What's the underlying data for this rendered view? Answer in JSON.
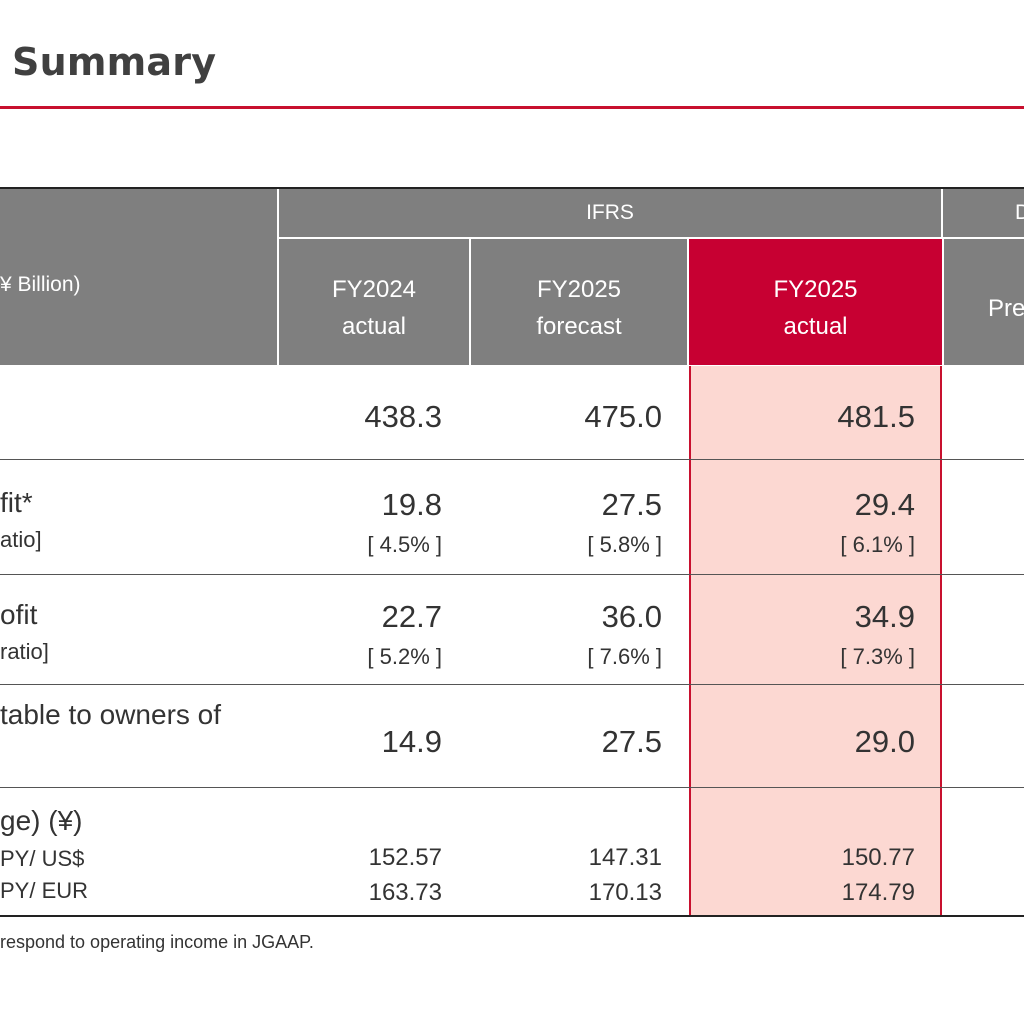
{
  "page": {
    "title": "Summary",
    "footnote": "respond to operating income in JGAAP."
  },
  "header": {
    "unit_label": "¥ Billion)",
    "ifrs_label": "IFRS",
    "right_group_label": "D",
    "right_col_label": "Pre",
    "columns": [
      {
        "line1": "FY2024",
        "line2": "actual"
      },
      {
        "line1": "FY2025",
        "line2": "forecast"
      },
      {
        "line1": "FY2025",
        "line2": "actual"
      }
    ]
  },
  "rows": {
    "revenue": {
      "values": [
        "438.3",
        "475.0",
        "481.5"
      ]
    },
    "core_profit": {
      "label": "fit*",
      "sublabel": "atio]",
      "values": [
        "19.8",
        "27.5",
        "29.4"
      ],
      "ratios": [
        "[ 4.5% ]",
        "[ 5.8% ]",
        "[ 6.1% ]"
      ]
    },
    "operating_profit": {
      "label": "ofit",
      "sublabel": "ratio]",
      "values": [
        "22.7",
        "36.0",
        "34.9"
      ],
      "ratios": [
        "[ 5.2% ]",
        "[ 7.6% ]",
        "[ 7.3% ]"
      ]
    },
    "net_profit": {
      "label": "table to owners of",
      "values": [
        "14.9",
        "27.5",
        "29.0"
      ]
    },
    "fx": {
      "label": "ge) (¥)",
      "usd_label": "PY/ US$",
      "eur_label": "PY/ EUR",
      "usd_values": [
        "152.57",
        "147.31",
        "150.77"
      ],
      "eur_values": [
        "163.73",
        "170.13",
        "174.79"
      ]
    }
  },
  "colors": {
    "accent": "#c8102e",
    "header_gray": "#7f7f7f",
    "header_actual": "#c70032",
    "highlight_fill": "#fcd8d2"
  }
}
